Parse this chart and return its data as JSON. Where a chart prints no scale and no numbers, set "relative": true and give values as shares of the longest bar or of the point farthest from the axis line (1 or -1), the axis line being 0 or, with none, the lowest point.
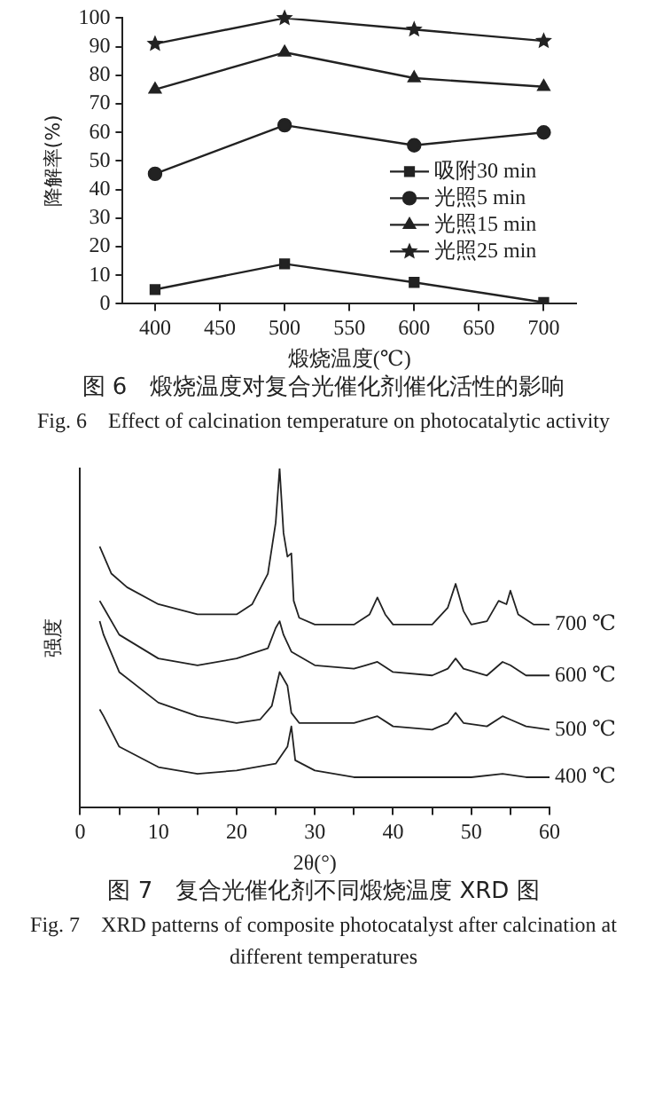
{
  "chart_data": [
    {
      "type": "line",
      "title": "图 6　煅烧温度对复合光催化剂催化活性的影响",
      "subtitle": "Fig. 6　Effect of calcination temperature on photocatalytic activity",
      "xlabel": "煅烧温度(℃)",
      "ylabel": "降解率(%)",
      "x": [
        400,
        500,
        600,
        700
      ],
      "xlim": [
        375,
        725
      ],
      "xticks": [
        400,
        450,
        500,
        550,
        600,
        650,
        700
      ],
      "ylim": [
        0,
        100
      ],
      "yticks": [
        0,
        10,
        20,
        30,
        40,
        50,
        60,
        70,
        80,
        90,
        100
      ],
      "legend": "right",
      "grid": false,
      "line_style": "solid",
      "series": [
        {
          "name": "吸附30 min",
          "color": "#222222",
          "marker": "square",
          "values": [
            5,
            14,
            7.5,
            0.5
          ]
        },
        {
          "name": "光照5 min",
          "color": "#222222",
          "marker": "circle",
          "values": [
            45.5,
            62.5,
            55.5,
            60
          ]
        },
        {
          "name": "光照15 min",
          "color": "#222222",
          "marker": "triangle",
          "values": [
            75,
            88,
            79,
            76
          ]
        },
        {
          "name": "光照25 min",
          "color": "#222222",
          "marker": "star",
          "values": [
            91,
            100,
            96,
            92
          ]
        }
      ]
    },
    {
      "type": "line",
      "relative": true,
      "title": "图 7　复合光催化剂不同煅烧温度 XRD 图",
      "subtitle": "Fig. 7　XRD patterns of composite photocatalyst after calcination at different temperatures",
      "xlabel": "2θ(°)",
      "ylabel": "强度",
      "xlim": [
        0,
        60
      ],
      "xticks": [
        0,
        {
          "value": 5,
          "label": null
        },
        10,
        {
          "value": 15,
          "label": null
        },
        20,
        {
          "value": 25,
          "label": null
        },
        30,
        {
          "value": 35,
          "label": null
        },
        40,
        {
          "value": 45,
          "label": null
        },
        50,
        {
          "value": 55,
          "label": null
        },
        60
      ],
      "grid": false,
      "marker": "none",
      "line_style": "solid",
      "series": [
        {
          "name": "700 ℃",
          "color": "#222222",
          "x": [
            2.5,
            4,
            6,
            10,
            15,
            20,
            22,
            24,
            25,
            25.5,
            26,
            26.5,
            27,
            27.3,
            28,
            30,
            35,
            37,
            38,
            39,
            40,
            45,
            47,
            48,
            49,
            50,
            52,
            53.5,
            54.5,
            55,
            56,
            58,
            60
          ],
          "values": [
            0.77,
            0.69,
            0.65,
            0.6,
            0.57,
            0.57,
            0.6,
            0.69,
            0.84,
            1,
            0.81,
            0.74,
            0.75,
            0.61,
            0.56,
            0.54,
            0.54,
            0.57,
            0.62,
            0.57,
            0.54,
            0.54,
            0.59,
            0.66,
            0.58,
            0.54,
            0.55,
            0.61,
            0.6,
            0.64,
            0.57,
            0.54,
            0.54
          ]
        },
        {
          "name": "600 ℃",
          "color": "#222222",
          "x": [
            2.5,
            3,
            5,
            10,
            15,
            20,
            24,
            25,
            25.5,
            26,
            27,
            30,
            35,
            36.5,
            38,
            40,
            45,
            47,
            48,
            49,
            52,
            54,
            55,
            57,
            60
          ],
          "values": [
            0.61,
            0.59,
            0.51,
            0.44,
            0.42,
            0.44,
            0.47,
            0.53,
            0.55,
            0.51,
            0.46,
            0.42,
            0.41,
            0.42,
            0.43,
            0.4,
            0.39,
            0.41,
            0.44,
            0.41,
            0.39,
            0.43,
            0.42,
            0.39,
            0.39
          ]
        },
        {
          "name": "500 ℃",
          "color": "#222222",
          "x": [
            2.5,
            3,
            5,
            10,
            15,
            20,
            23,
            24.5,
            25.5,
            26.5,
            27,
            28,
            30,
            35,
            38,
            40,
            45,
            47,
            48,
            49,
            52,
            54,
            55,
            57,
            60
          ],
          "values": [
            0.55,
            0.51,
            0.4,
            0.31,
            0.27,
            0.25,
            0.26,
            0.3,
            0.4,
            0.36,
            0.28,
            0.25,
            0.25,
            0.25,
            0.27,
            0.24,
            0.23,
            0.25,
            0.28,
            0.25,
            0.24,
            0.27,
            0.26,
            0.24,
            0.23
          ]
        },
        {
          "name": "400 ℃",
          "color": "#222222",
          "x": [
            2.5,
            3,
            5,
            10,
            15,
            20,
            25,
            26.5,
            27,
            27.5,
            30,
            35,
            40,
            45,
            50,
            54,
            57,
            60
          ],
          "values": [
            0.29,
            0.27,
            0.18,
            0.12,
            0.1,
            0.11,
            0.13,
            0.18,
            0.24,
            0.14,
            0.11,
            0.09,
            0.09,
            0.09,
            0.09,
            0.1,
            0.09,
            0.09
          ]
        }
      ]
    }
  ]
}
